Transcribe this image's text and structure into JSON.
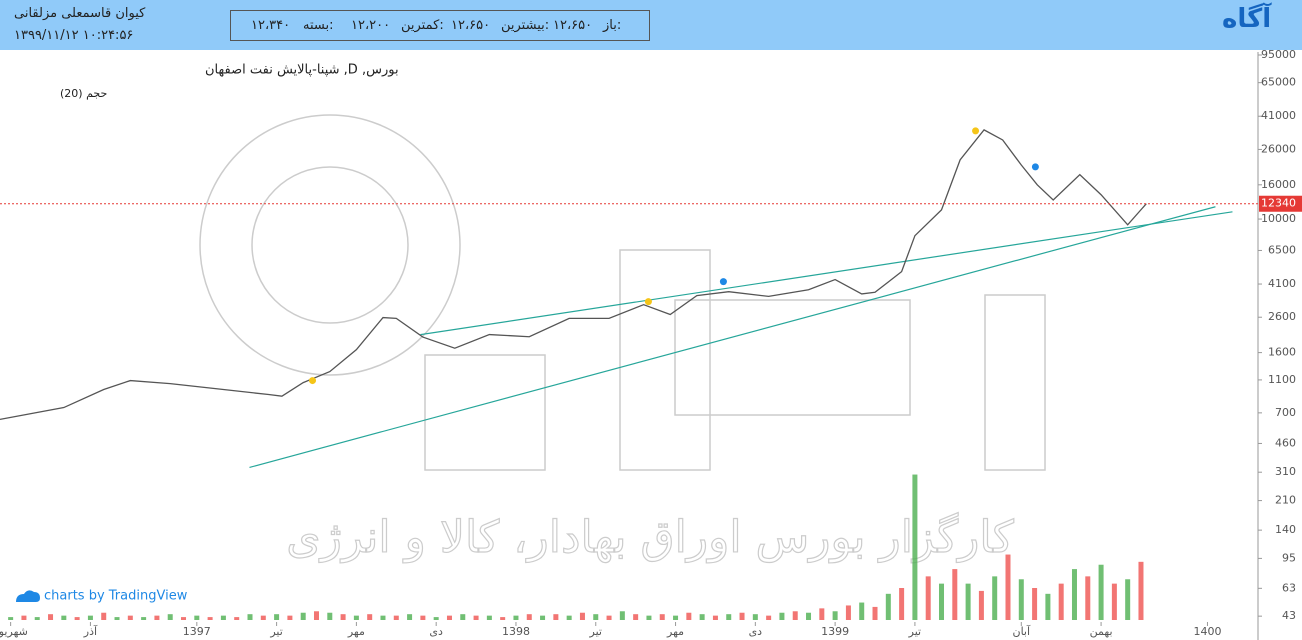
{
  "header": {
    "user": "کیوان قاسمعلی مزلقانی",
    "datetime": "۱۳۹۹/۱۱/۱۲ ۱۰:۲۴:۵۶",
    "open_label": "باز:",
    "open": "۱۲،۶۵۰",
    "high_label": "بیشترین:",
    "high": "۱۲،۶۵۰",
    "low_label": "کمترین:",
    "low": "۱۲،۲۰۰",
    "close_label": "بسته:",
    "close": "۱۲،۳۴۰",
    "logo": "آگاه"
  },
  "chart_data": {
    "type": "line",
    "title": "بورس, D, شپنا-پالایش نفت اصفهان",
    "subtitle": "حجم (20)",
    "watermark": "کارگزار بورس اوراق بهادار، کالا و انرژی",
    "credit": "charts by TradingView",
    "log_scale": true,
    "grid": false,
    "x": [
      -0.4,
      2,
      3.5,
      4.5,
      6,
      8,
      9.7,
      10.2,
      11,
      12,
      13,
      14,
      14.5,
      15.5,
      16.7,
      18,
      19.5,
      21,
      22.5,
      23.8,
      24.8,
      25.8,
      27,
      28.5,
      30,
      31,
      32,
      32.5,
      33.5,
      34,
      35,
      35.7,
      36.6,
      37.3,
      38,
      38.6,
      39.2,
      40.2,
      41,
      42,
      42.7
    ],
    "series": [
      {
        "name": "شپنا",
        "color": "#555555",
        "values": [
          640,
          753,
          964,
          1090,
          1045,
          964,
          900,
          880,
          1060,
          1233,
          1667,
          2588,
          2560,
          1980,
          1700,
          2050,
          1990,
          2560,
          2560,
          3090,
          2700,
          3500,
          3690,
          3460,
          3790,
          4360,
          3580,
          3660,
          4860,
          7960,
          11350,
          22540,
          34000,
          29600,
          21000,
          16000,
          13000,
          18400,
          13960,
          9250,
          12340
        ]
      }
    ],
    "xlim": [
      -0.4,
      46.9
    ],
    "xticks": [
      {
        "value": 0,
        "label": "شهریور"
      },
      {
        "value": 3,
        "label": "آذر"
      },
      {
        "value": 7,
        "label": "1397"
      },
      {
        "value": 10,
        "label": "تیر"
      },
      {
        "value": 13,
        "label": "مهر"
      },
      {
        "value": 16,
        "label": "دی"
      },
      {
        "value": 19,
        "label": "1398"
      },
      {
        "value": 22,
        "label": "تیر"
      },
      {
        "value": 25,
        "label": "مهر"
      },
      {
        "value": 28,
        "label": "دی"
      },
      {
        "value": 31,
        "label": "1399"
      },
      {
        "value": 34,
        "label": "تیر"
      },
      {
        "value": 38,
        "label": "آبان"
      },
      {
        "value": 41,
        "label": "بهمن"
      },
      {
        "value": 45,
        "label": "1400"
      }
    ],
    "ylim": [
      31,
      99000
    ],
    "yticks": [
      95000,
      65000,
      41000,
      26000,
      16000,
      10000,
      6500,
      4100,
      2600,
      1600,
      1100,
      700,
      460,
      310,
      210,
      140,
      95,
      63,
      43
    ],
    "price_line_color": "#e53935",
    "volume": {
      "colors": [
        "#4caf50",
        "#ef5350"
      ],
      "ylim": [
        0,
        110
      ],
      "x": [
        0,
        0.5,
        1,
        1.5,
        2,
        2.5,
        3,
        3.5,
        4,
        4.5,
        5,
        5.5,
        6,
        6.5,
        7,
        7.5,
        8,
        8.5,
        9,
        9.5,
        10,
        10.5,
        11,
        11.5,
        12,
        12.5,
        13,
        13.5,
        14,
        14.5,
        15,
        15.5,
        16,
        16.5,
        17,
        17.5,
        18,
        18.5,
        19,
        19.5,
        20,
        20.5,
        21,
        21.5,
        22,
        22.5,
        23,
        23.5,
        24,
        24.5,
        25,
        25.5,
        26,
        26.5,
        27,
        27.5,
        28,
        28.5,
        29,
        29.5,
        30,
        30.5,
        31,
        31.5,
        32,
        32.5,
        33,
        33.5,
        34,
        34.5,
        35,
        35.5,
        36,
        36.5,
        37,
        37.5,
        38,
        38.5,
        39,
        39.5,
        40,
        40.5,
        41,
        41.5,
        42,
        42.5
      ],
      "values": [
        2,
        3,
        2,
        4,
        3,
        2,
        3,
        5,
        2,
        3,
        2,
        3,
        4,
        2,
        3,
        2,
        3,
        2,
        4,
        3,
        4,
        3,
        5,
        6,
        5,
        4,
        3,
        4,
        3,
        3,
        4,
        3,
        2,
        3,
        4,
        3,
        3,
        2,
        3,
        4,
        3,
        4,
        3,
        5,
        4,
        3,
        6,
        4,
        3,
        4,
        3,
        5,
        4,
        3,
        4,
        5,
        4,
        3,
        5,
        6,
        5,
        8,
        6,
        10,
        12,
        9,
        18,
        22,
        100,
        30,
        25,
        35,
        25,
        20,
        30,
        45,
        28,
        22,
        18,
        25,
        35,
        30,
        38,
        25,
        28,
        40
      ]
    },
    "trend_color": "#26a69a",
    "trend_lines": [
      {
        "x": [
          8.98,
          45.3
        ],
        "y": [
          331,
          11840
        ]
      },
      {
        "x": [
          15.41,
          45.94
        ],
        "y": [
          2047,
          11050
        ]
      }
    ],
    "markers": [
      {
        "color": "#f5c518",
        "x": [
          11.35,
          23.98,
          36.28
        ],
        "y": [
          1090,
          3220,
          33550
        ]
      },
      {
        "color": "#1e88e5",
        "x": [
          26.8,
          38.53
        ],
        "y": [
          4240,
          20470
        ]
      }
    ]
  }
}
